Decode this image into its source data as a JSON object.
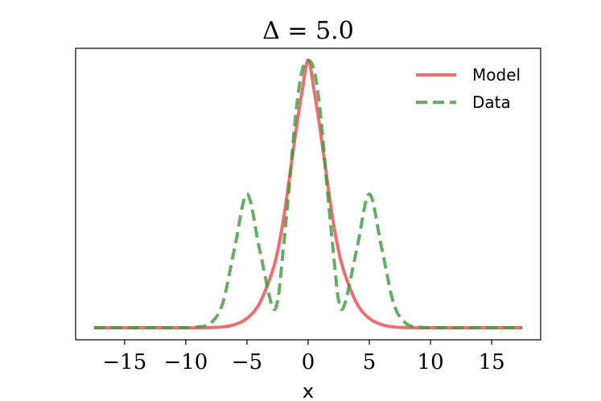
{
  "chart_data": {
    "type": "line",
    "title": "Δ = 5.0",
    "xlabel": "x",
    "ylabel": "",
    "xlim": [
      -19,
      19
    ],
    "ylim": [
      -0.045,
      1.045
    ],
    "grid": false,
    "legend_position": "top-right",
    "xticks": [
      {
        "value": -15,
        "label": "−15"
      },
      {
        "value": -10,
        "label": "−10"
      },
      {
        "value": -5,
        "label": "−5"
      },
      {
        "value": 0,
        "label": "0"
      },
      {
        "value": 5,
        "label": "5"
      },
      {
        "value": 10,
        "label": "10"
      },
      {
        "value": 15,
        "label": "15"
      }
    ],
    "x": [
      -17.5,
      -16,
      -14,
      -12,
      -10,
      -9,
      -8,
      -7,
      -6,
      -5,
      -4,
      -3,
      -2.5,
      -2,
      -1.5,
      -1,
      -0.5,
      0,
      0.5,
      1,
      1.5,
      2,
      2.5,
      3,
      4,
      5,
      6,
      7,
      8,
      9,
      10,
      12,
      14,
      16,
      17.5
    ],
    "series": [
      {
        "name": "Model",
        "color": "#ef4848",
        "style": "solid",
        "values": [
          0,
          0,
          0,
          0,
          0,
          0,
          0.001,
          0.003,
          0.012,
          0.035,
          0.089,
          0.2,
          0.285,
          0.411,
          0.57,
          0.735,
          0.883,
          1.0,
          0.883,
          0.735,
          0.57,
          0.411,
          0.285,
          0.2,
          0.089,
          0.035,
          0.012,
          0.003,
          0.001,
          0,
          0,
          0,
          0,
          0,
          0
        ]
      },
      {
        "name": "Data",
        "color": "#3f9a3f",
        "style": "dashed",
        "values": [
          0,
          0,
          0,
          0,
          0,
          0.003,
          0.016,
          0.089,
          0.3,
          0.5,
          0.3,
          0.09,
          0.1,
          0.31,
          0.55,
          0.805,
          0.96,
          1.0,
          0.96,
          0.805,
          0.55,
          0.31,
          0.1,
          0.09,
          0.3,
          0.5,
          0.3,
          0.089,
          0.016,
          0.003,
          0,
          0,
          0,
          0,
          0
        ]
      }
    ]
  }
}
